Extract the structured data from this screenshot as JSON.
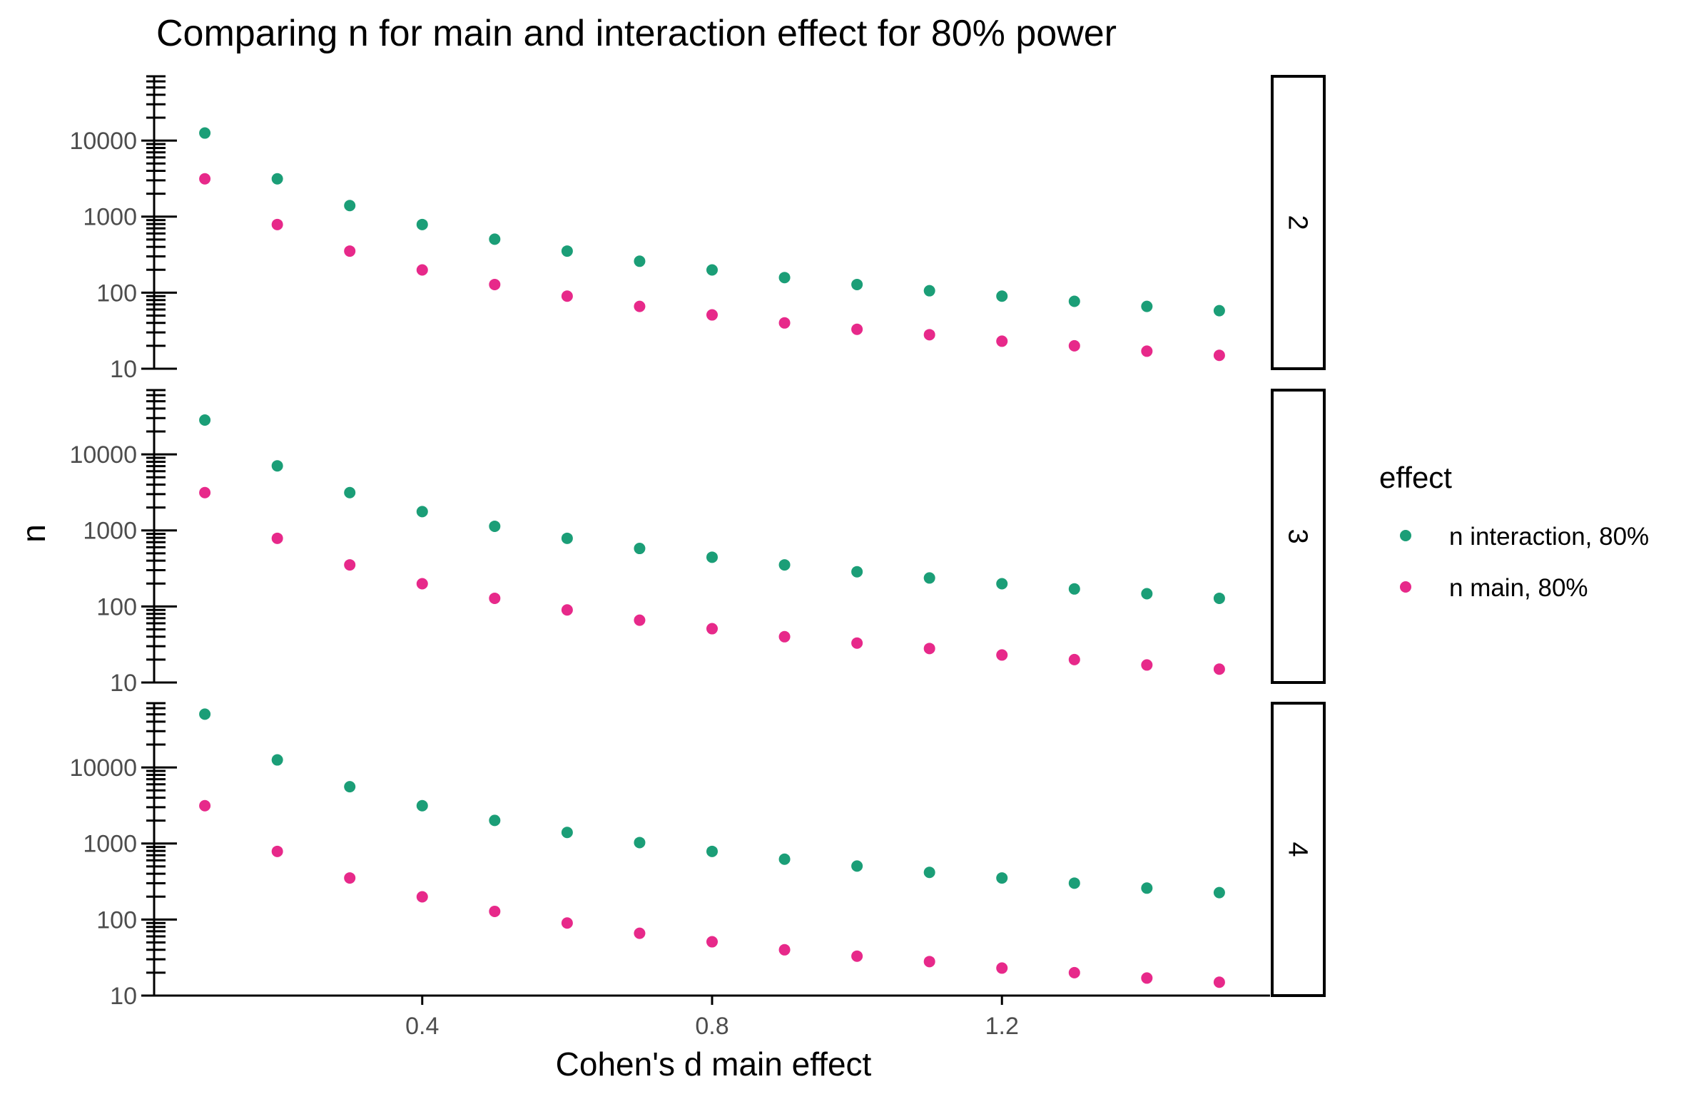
{
  "chart_data": {
    "type": "scatter",
    "title": "Comparing n for main and interaction effect for 80% power",
    "xlabel": "Cohen's d main effect",
    "ylabel": "n",
    "x_ticks": [
      0.4,
      0.8,
      1.2
    ],
    "x_tick_labels": [
      "0.4",
      "0.8",
      "1.2"
    ],
    "xlim": [
      0.03,
      1.57
    ],
    "y_scale": "log10",
    "ylim": [
      10,
      70000
    ],
    "y_ticks": [
      10,
      100,
      1000,
      10000
    ],
    "y_tick_labels": [
      "10",
      "100",
      "1000",
      "10000"
    ],
    "grid": false,
    "legend": {
      "title": "effect",
      "position": "right",
      "entries": [
        {
          "label": "n interaction, 80%",
          "color": "#1b9e77"
        },
        {
          "label": "n main, 80%",
          "color": "#e7298a"
        }
      ]
    },
    "x": [
      0.1,
      0.2,
      0.3,
      0.4,
      0.5,
      0.6,
      0.7,
      0.8,
      0.9,
      1.0,
      1.1,
      1.2,
      1.3,
      1.4,
      1.5
    ],
    "panels": [
      {
        "strip_label": "2",
        "series": [
          {
            "name": "n interaction, 80%",
            "color": "#1b9e77",
            "values": [
              12560,
              3142,
              1398,
              787,
              505,
              352,
              259,
              199,
              158,
              128,
              106,
              90,
              77,
              66,
              58
            ]
          },
          {
            "name": "n main, 80%",
            "color": "#e7298a",
            "values": [
              3142,
              787,
              352,
              199,
              128,
              90,
              66,
              51,
              40,
              33,
              28,
              23,
              20,
              17,
              15
            ]
          }
        ]
      },
      {
        "strip_label": "3",
        "series": [
          {
            "name": "n interaction, 80%",
            "color": "#1b9e77",
            "values": [
              28258,
              7067,
              3142,
              1768,
              1133,
              787,
              579,
              444,
              352,
              286,
              237,
              199,
              170,
              147,
              128
            ]
          },
          {
            "name": "n main, 80%",
            "color": "#e7298a",
            "values": [
              3142,
              787,
              352,
              199,
              128,
              90,
              66,
              51,
              40,
              33,
              28,
              23,
              20,
              17,
              15
            ]
          }
        ]
      },
      {
        "strip_label": "4",
        "series": [
          {
            "name": "n interaction, 80%",
            "color": "#1b9e77",
            "values": [
              50236,
              12560,
              5584,
              3142,
              2012,
              1398,
              1028,
              787,
              622,
              505,
              417,
              352,
              301,
              259,
              226
            ]
          },
          {
            "name": "n main, 80%",
            "color": "#e7298a",
            "values": [
              3142,
              787,
              352,
              199,
              128,
              90,
              66,
              51,
              40,
              33,
              28,
              23,
              20,
              17,
              15
            ]
          }
        ]
      }
    ]
  }
}
